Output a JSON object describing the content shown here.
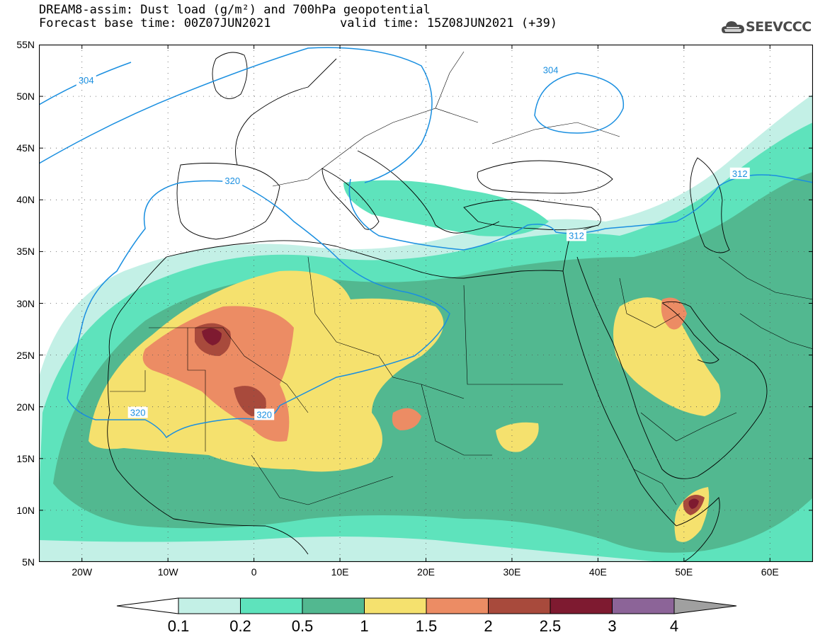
{
  "header": {
    "title_line1": "DREAM8-assim: Dust load (g/m²) and 700hPa geopotential",
    "title_line2": "Forecast base time: 00Z07JUN2021",
    "valid_time": "valid time: 15Z08JUN2021 (+39)",
    "logo_text": "SEEVCCC",
    "logo_icon": "cloud-icon"
  },
  "map": {
    "lat_ticks": [
      "55N",
      "50N",
      "45N",
      "40N",
      "35N",
      "30N",
      "25N",
      "20N",
      "15N",
      "10N",
      "5N"
    ],
    "lat_values": [
      55,
      50,
      45,
      40,
      35,
      30,
      25,
      20,
      15,
      10,
      5
    ],
    "lon_ticks": [
      "20W",
      "10W",
      "0",
      "10E",
      "20E",
      "30E",
      "40E",
      "50E",
      "60E"
    ],
    "lon_values": [
      -20,
      -10,
      0,
      10,
      20,
      30,
      40,
      50,
      60
    ],
    "extent": {
      "lon": [
        -25,
        65
      ],
      "lat": [
        5,
        55
      ]
    },
    "contour_labels": [
      {
        "text": "304",
        "lon": -19.5,
        "lat": 51.5
      },
      {
        "text": "304",
        "lon": 34.5,
        "lat": 52.5
      },
      {
        "text": "320",
        "lon": -2.5,
        "lat": 41.8
      },
      {
        "text": "320",
        "lon": -13.5,
        "lat": 19.4
      },
      {
        "text": "320",
        "lon": 1.2,
        "lat": 19.2
      },
      {
        "text": "312",
        "lon": 37.5,
        "lat": 36.5
      },
      {
        "text": "312",
        "lon": 56.5,
        "lat": 42.5
      }
    ]
  },
  "colorbar": {
    "labels": [
      "0.1",
      "0.2",
      "0.5",
      "1",
      "1.5",
      "2",
      "2.5",
      "3",
      "4"
    ],
    "colors": [
      "#c3f0e6",
      "#5ee3bc",
      "#52b890",
      "#f5e16e",
      "#ec8c64",
      "#a84a3c",
      "#7e1a30",
      "#8c6498",
      "#a0a0a0"
    ]
  },
  "colors": {
    "contour": "#1a8fe0",
    "coast": "#000000",
    "grid": "#555555"
  }
}
